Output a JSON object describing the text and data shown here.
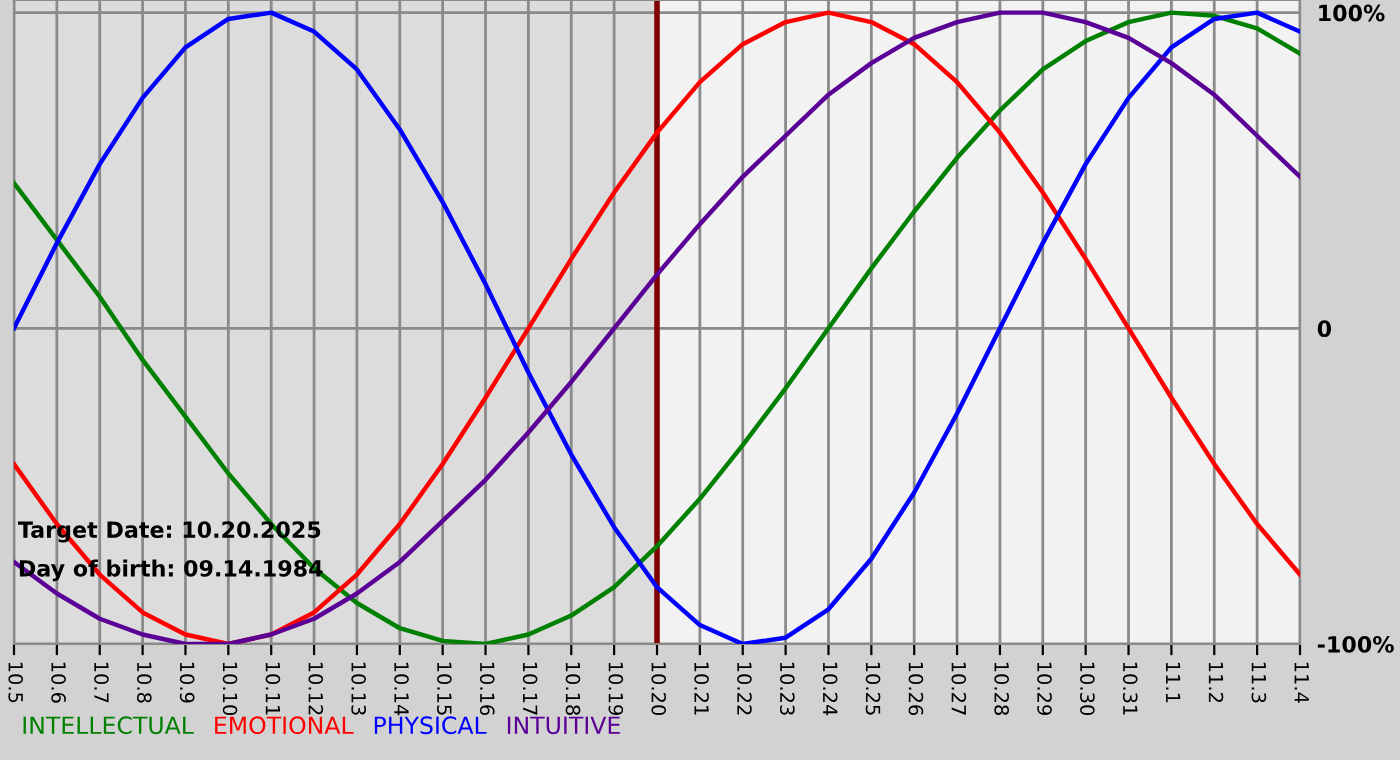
{
  "chart_data": {
    "type": "line",
    "categories": [
      "10.5",
      "10.6",
      "10.7",
      "10.8",
      "10.9",
      "10.10",
      "10.11",
      "10.12",
      "10.13",
      "10.14",
      "10.15",
      "10.16",
      "10.17",
      "10.18",
      "10.19",
      "10.20",
      "10.21",
      "10.22",
      "10.23",
      "10.24",
      "10.25",
      "10.26",
      "10.27",
      "10.28",
      "10.29",
      "10.30",
      "10.31",
      "11.1",
      "11.2",
      "11.3",
      "11.4"
    ],
    "series": [
      {
        "name": "INTELLECTUAL",
        "color": "#008000",
        "values": [
          46,
          28,
          10,
          -10,
          -28,
          -46,
          -62,
          -76,
          -87,
          -95,
          -99,
          -100,
          -97,
          -91,
          -82,
          -69,
          -54,
          -37,
          -19,
          0,
          19,
          37,
          54,
          69,
          82,
          91,
          97,
          100,
          99,
          95,
          87
        ]
      },
      {
        "name": "EMOTIONAL",
        "color": "#ff0000",
        "values": [
          -43,
          -62,
          -78,
          -90,
          -97,
          -100,
          -97,
          -90,
          -78,
          -62,
          -43,
          -22,
          0,
          22,
          43,
          62,
          78,
          90,
          97,
          100,
          97,
          90,
          78,
          62,
          43,
          22,
          0,
          -22,
          -43,
          -62,
          -78
        ]
      },
      {
        "name": "PHYSICAL",
        "color": "#0000ff",
        "values": [
          0,
          27,
          52,
          73,
          89,
          98,
          100,
          94,
          82,
          63,
          40,
          14,
          -14,
          -40,
          -63,
          -82,
          -94,
          -100,
          -98,
          -89,
          -73,
          -52,
          -27,
          0,
          27,
          52,
          73,
          89,
          98,
          100,
          94
        ]
      },
      {
        "name": "INTUITIVE",
        "color": "#5a0096",
        "values": [
          -74,
          -84,
          -92,
          -97,
          -100,
          -100,
          -97,
          -92,
          -84,
          -74,
          -61,
          -48,
          -33,
          -17,
          0,
          17,
          33,
          48,
          61,
          74,
          84,
          92,
          97,
          100,
          100,
          97,
          92,
          84,
          74,
          61,
          48
        ]
      }
    ],
    "ylim": [
      -100,
      104
    ],
    "yticks": [
      {
        "value": 100,
        "label": "100%"
      },
      0,
      {
        "value": -100,
        "label": "-100%"
      }
    ],
    "grid": true,
    "legend": "bottom left",
    "ref_lines": [
      {
        "axis": "x",
        "value": "10.20",
        "color": "#800000"
      }
    ],
    "bands": [
      {
        "axis": "x",
        "from": "10.5",
        "to": "10.20",
        "color": "#dcdcdc"
      }
    ],
    "annotations": [
      "Target Date: 10.20.2025",
      "Day of birth: 09.14.1984"
    ]
  }
}
